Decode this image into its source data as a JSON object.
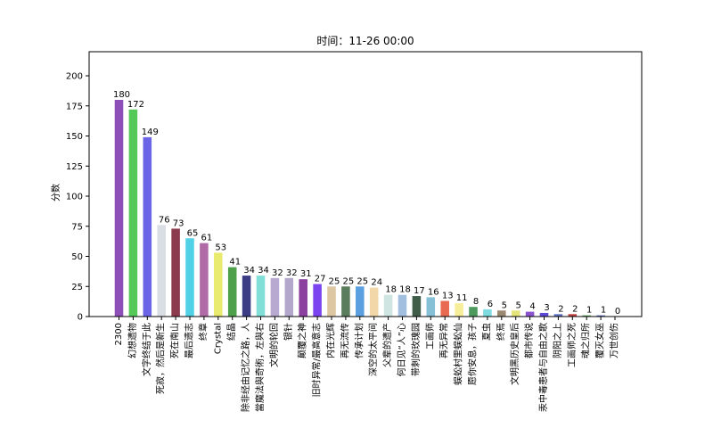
{
  "chart_data": {
    "type": "bar",
    "title": "时间：11-26 00:00",
    "xlabel": "",
    "ylabel": "分数",
    "ylim": [
      0,
      220
    ],
    "yticks": [
      0,
      25,
      50,
      75,
      100,
      125,
      150,
      175,
      200
    ],
    "grid": false,
    "categories": [
      "2300",
      "幻想遗物",
      "文字终结于此",
      "死寂，然后是新生",
      "死在南山",
      "最后遗志",
      "终章",
      "Crystal",
      "结晶",
      "除非经由记忆之路，人",
      "當魔法與奇術，左與右",
      "文明的轮回",
      "银针",
      "颠覆之神",
      "旧时异常/最高意志",
      "内在光辉",
      "再无流传",
      "传承计划",
      "深空的太平间",
      "父辈的遗产",
      "何日见“人”心",
      "带刺的玫瑰园",
      "工画师",
      "再无异常",
      "蜈蚣村里蜈蚣仙",
      "愿你安息，孩子",
      "夏虫",
      "终焉",
      "文明黑历史皇后",
      "都市传说",
      "汞中毒患者与自由之歌",
      "阴阳之上",
      "工画师之死",
      "魂之归所",
      "覆灭女巫",
      "万世创伤"
    ],
    "values": [
      180,
      172,
      149,
      76,
      73,
      65,
      61,
      53,
      41,
      34,
      34,
      32,
      32,
      31,
      27,
      25,
      25,
      25,
      24,
      18,
      18,
      17,
      16,
      13,
      11,
      8,
      6,
      5,
      5,
      4,
      3,
      2,
      2,
      1,
      1,
      0
    ],
    "colors": [
      "#8f4fb8",
      "#55c957",
      "#6b64e6",
      "#d9dde4",
      "#8c3a4e",
      "#50d1e6",
      "#b06aa5",
      "#e8ea6e",
      "#4ea04a",
      "#3c3c84",
      "#80e0d8",
      "#b7a9cf",
      "#b3a8cc",
      "#8b3f9f",
      "#7a45f0",
      "#ddc6a2",
      "#5a7d5e",
      "#5aa0e0",
      "#f2d8a8",
      "#cfe5e2",
      "#a2bfe0",
      "#3f5d48",
      "#86c0d6",
      "#e86a50",
      "#f7ee9a",
      "#4e9a5e",
      "#7edce0",
      "#9a8870",
      "#e4e47a",
      "#8a52cc",
      "#5a4ad6",
      "#6070c0",
      "#c04040",
      "#5aaa5a",
      "#6070c0",
      "#9aa0b0"
    ]
  }
}
